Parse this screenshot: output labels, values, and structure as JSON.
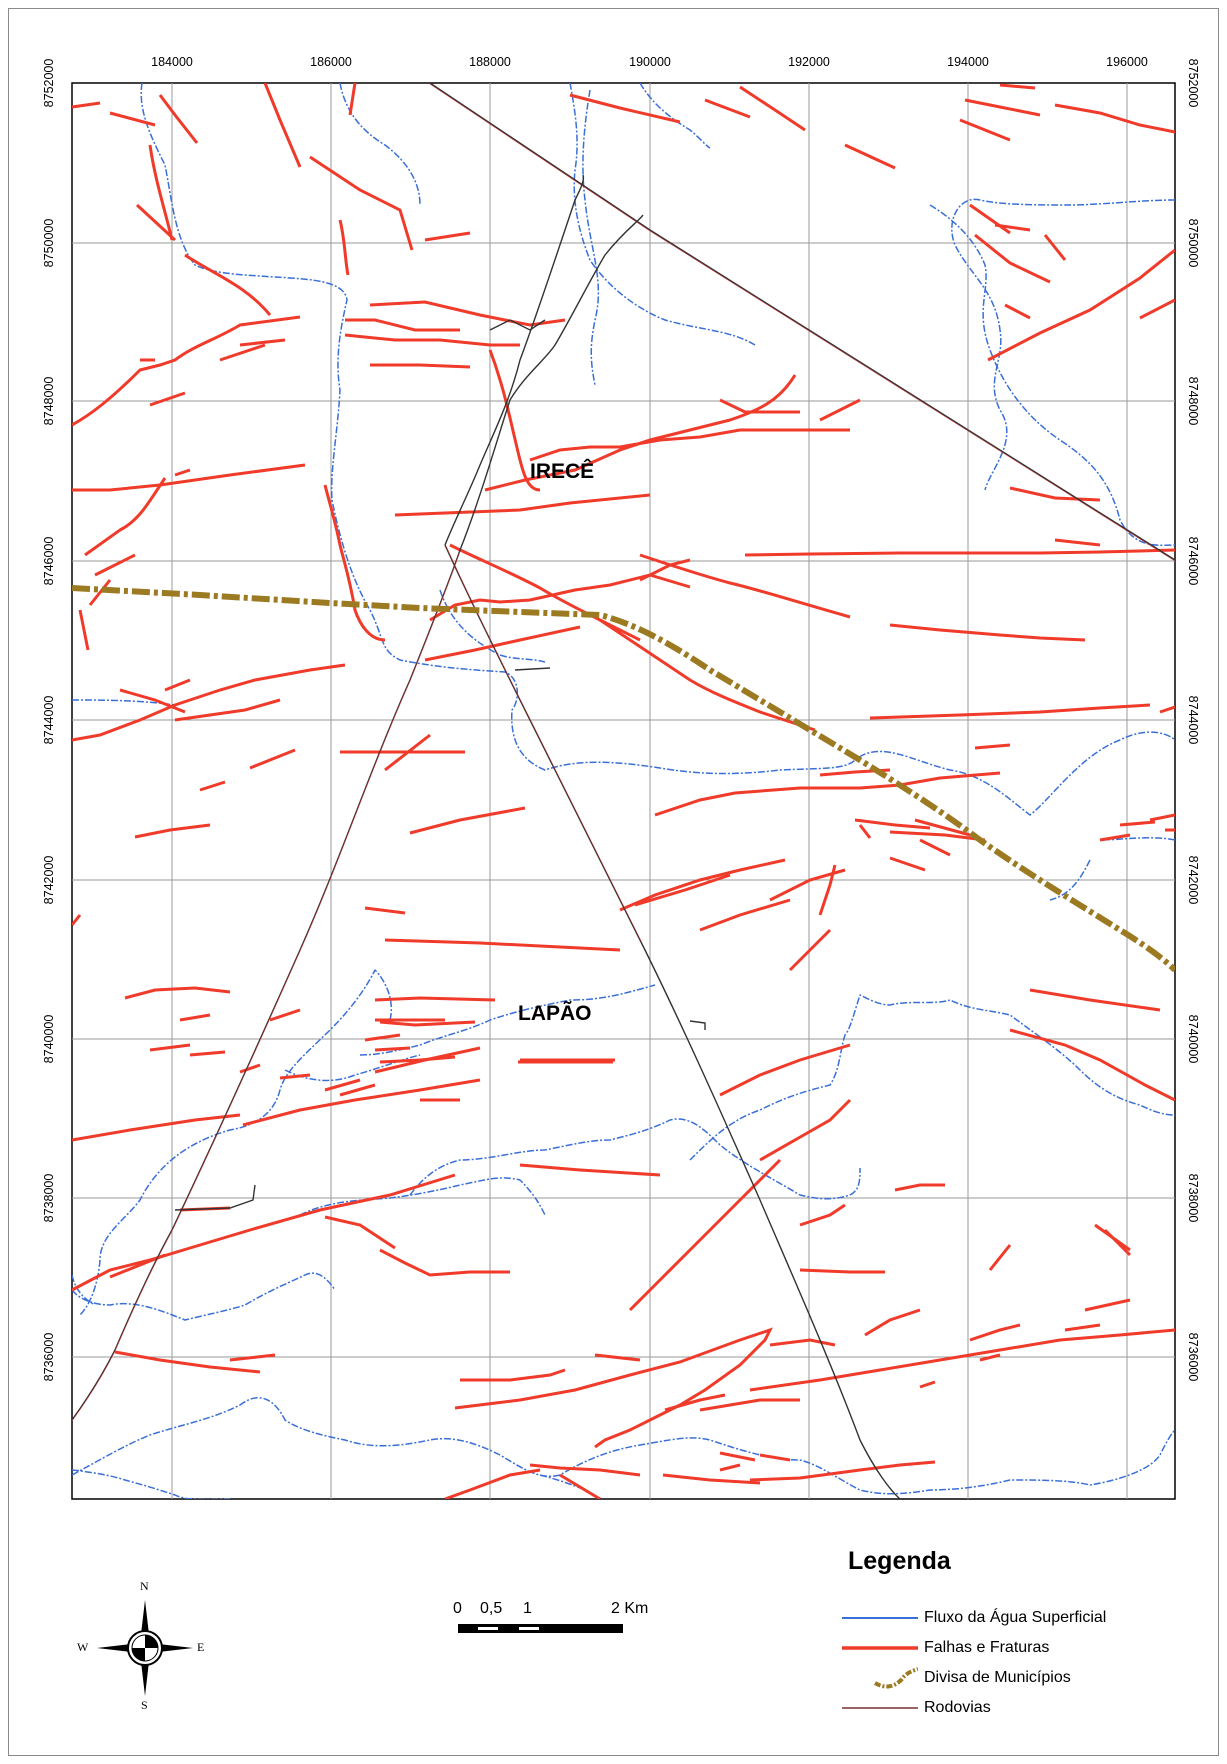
{
  "map": {
    "x_ticks": [
      "184000",
      "186000",
      "188000",
      "190000",
      "192000",
      "194000",
      "196000"
    ],
    "y_ticks": [
      "8752000",
      "8750000",
      "8748000",
      "8746000",
      "8744000",
      "8742000",
      "8740000",
      "8738000",
      "8736000"
    ],
    "places": [
      {
        "name": "IRECÊ"
      },
      {
        "name": "LAPÃO"
      }
    ],
    "colors": {
      "water": "#3a6fd8",
      "faults": "#f03a2a",
      "border": "#9b7a22",
      "roads": "#333333",
      "grid": "#9a9a9a"
    }
  },
  "scalebar": {
    "labels": [
      "0",
      "0,5",
      "1",
      "2 Km"
    ]
  },
  "north_arrow": {
    "n": "N",
    "s": "S",
    "e": "E",
    "w": "W",
    "icon": "compass-rose-icon"
  },
  "legend": {
    "title": "Legenda",
    "items": [
      {
        "label": "Fluxo da Água Superficial",
        "symbol": "blue-line"
      },
      {
        "label": "Falhas e Fraturas",
        "symbol": "red-line"
      },
      {
        "label": "Divisa de Municípios",
        "symbol": "brown-dashdot-curve"
      },
      {
        "label": "Rodovias",
        "symbol": "dark-red-line"
      }
    ]
  }
}
